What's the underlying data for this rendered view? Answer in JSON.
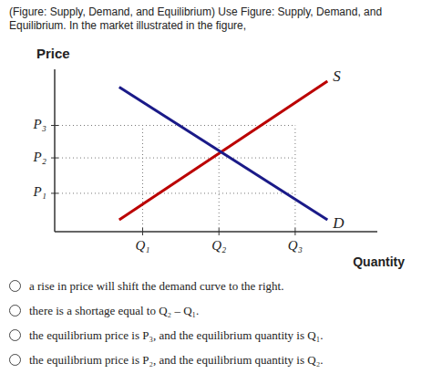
{
  "chart_data": {
    "type": "line",
    "title": "(Figure: Supply, Demand, and Equilibrium) Use Figure: Supply, Demand, and Equilibrium. In the market illustrated in the figure,",
    "xlabel": "Quantity",
    "ylabel": "Price",
    "xlim": [
      0,
      5.5
    ],
    "ylim": [
      0,
      5.5
    ],
    "xticks": [
      {
        "value": 1.5,
        "label": "Q₁"
      },
      {
        "value": 2.8,
        "label": "Q₂"
      },
      {
        "value": 4.1,
        "label": "Q₃"
      }
    ],
    "yticks": [
      {
        "value": 1.3,
        "label": "P₁"
      },
      {
        "value": 2.5,
        "label": "P₂"
      },
      {
        "value": 3.6,
        "label": "P₃"
      }
    ],
    "grid": true,
    "series": [
      {
        "name": "S",
        "color": "#bb0000",
        "x": [
          1.1,
          4.65
        ],
        "values": [
          0.4,
          5.1
        ]
      },
      {
        "name": "D",
        "color": "#1a1a88",
        "x": [
          1.1,
          4.65
        ],
        "values": [
          4.9,
          0.4
        ]
      }
    ],
    "annotations": [
      "a rise in price will shift the demand curve to the right.",
      "there is a shortage equal to Q₂ – Q₁.",
      "the equilibrium price is P₃, and the equilibrium quantity is Q₁.",
      "the equilibrium price is P₂, and the equilibrium quantity is Q₂."
    ]
  }
}
